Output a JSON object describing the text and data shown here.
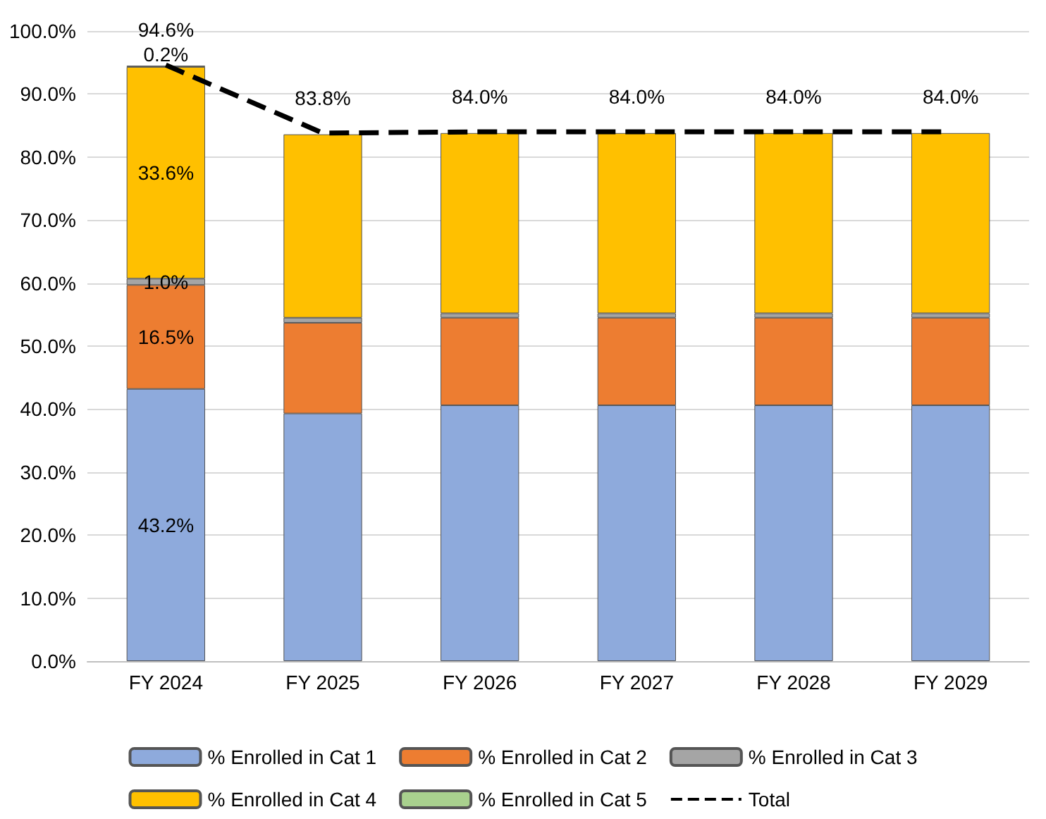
{
  "chart_data": {
    "type": "bar",
    "stacked": true,
    "categories": [
      "FY 2024",
      "FY 2025",
      "FY 2026",
      "FY 2027",
      "FY 2028",
      "FY 2029"
    ],
    "series": [
      {
        "name": "% Enrolled in Cat 1",
        "color": "#8eaadc",
        "values": [
          43.2,
          39.3,
          40.6,
          40.6,
          40.6,
          40.6
        ],
        "value_labels": [
          "43.2%",
          null,
          null,
          null,
          null,
          null
        ]
      },
      {
        "name": "% Enrolled in Cat 2",
        "color": "#ed7d31",
        "values": [
          16.5,
          14.4,
          13.9,
          13.9,
          13.9,
          13.9
        ],
        "value_labels": [
          "16.5%",
          null,
          null,
          null,
          null,
          null
        ]
      },
      {
        "name": "% Enrolled in Cat 3",
        "color": "#a5a5a5",
        "values": [
          1.0,
          0.8,
          0.7,
          0.7,
          0.7,
          0.7
        ],
        "value_labels": [
          "1.0%",
          null,
          null,
          null,
          null,
          null
        ]
      },
      {
        "name": "% Enrolled in Cat 4",
        "color": "#ffc000",
        "values": [
          33.6,
          29.1,
          28.6,
          28.6,
          28.6,
          28.6
        ],
        "value_labels": [
          "33.6%",
          null,
          null,
          null,
          null,
          null
        ]
      },
      {
        "name": "% Enrolled in Cat 5",
        "color": "#a9d18e",
        "values": [
          0.2,
          null,
          null,
          null,
          null,
          null
        ],
        "value_labels": [
          "0.2%",
          null,
          null,
          null,
          null,
          null
        ]
      },
      {
        "name": "Total",
        "type": "line",
        "color": "#000000",
        "line_style": "dashed",
        "marker": "none",
        "values": [
          94.6,
          83.8,
          84.0,
          84.0,
          84.0,
          84.0
        ],
        "value_labels": [
          "94.6%",
          "83.8%",
          "84.0%",
          "84.0%",
          "84.0%",
          "84.0%"
        ]
      }
    ],
    "ylim": [
      0,
      100
    ],
    "yticks": [
      {
        "value": 0,
        "label": "0.0%"
      },
      {
        "value": 10,
        "label": "10.0%"
      },
      {
        "value": 20,
        "label": "20.0%"
      },
      {
        "value": 30,
        "label": "30.0%"
      },
      {
        "value": 40,
        "label": "40.0%"
      },
      {
        "value": 50,
        "label": "50.0%"
      },
      {
        "value": 60,
        "label": "60.0%"
      },
      {
        "value": 70,
        "label": "70.0%"
      },
      {
        "value": 80,
        "label": "80.0%"
      },
      {
        "value": 90,
        "label": "90.0%"
      },
      {
        "value": 100,
        "label": "100.0%"
      }
    ],
    "grid": "y",
    "legend": "bottom"
  }
}
